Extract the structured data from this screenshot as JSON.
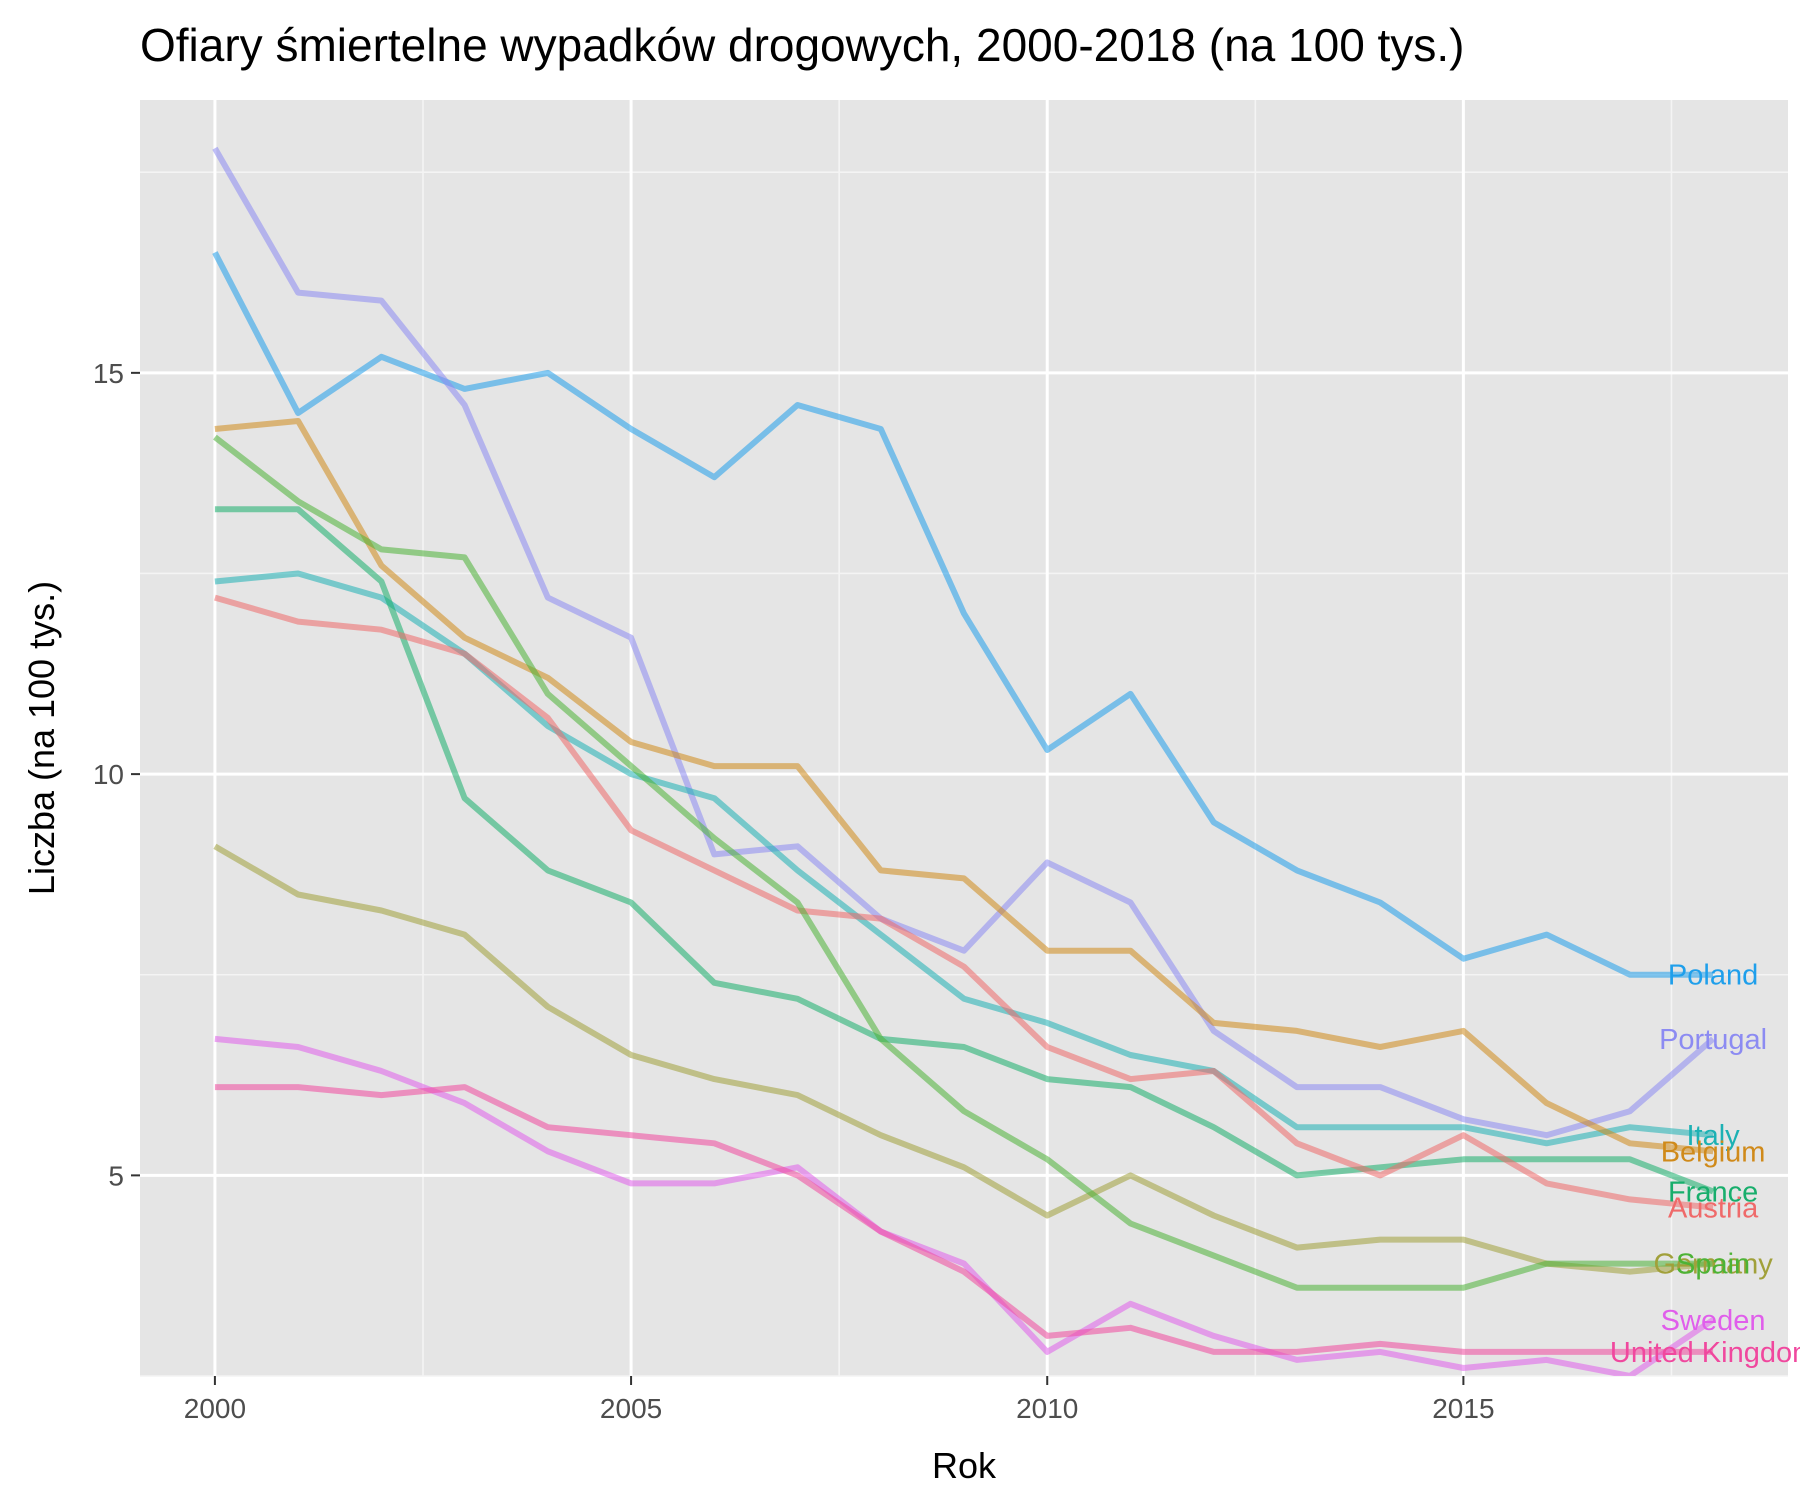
{
  "chart_data": {
    "type": "line",
    "title": "Ofiary śmiertelne wypadków drogowych, 2000-2018 (na 100 tys.)",
    "xlabel": "Rok",
    "ylabel": "Liczba (na 100 tys.)",
    "x": [
      2000,
      2001,
      2002,
      2003,
      2004,
      2005,
      2006,
      2007,
      2008,
      2009,
      2010,
      2011,
      2012,
      2013,
      2014,
      2015,
      2016,
      2017,
      2018
    ],
    "xlim": [
      1999.1,
      2018.9
    ],
    "ylim": [
      2.5,
      18.4
    ],
    "x_ticks": [
      "2000",
      "2005",
      "2010",
      "2015"
    ],
    "y_ticks": [
      "5",
      "10",
      "15"
    ],
    "grid": true,
    "legend": "direct labels at line ends",
    "series": [
      {
        "name": "Poland",
        "color": "#1F9FEB",
        "values": [
          16.5,
          14.5,
          15.2,
          14.8,
          15.0,
          14.3,
          13.7,
          14.6,
          14.3,
          12.0,
          10.3,
          11.0,
          9.4,
          8.8,
          8.4,
          7.7,
          8.0,
          7.5,
          7.5
        ]
      },
      {
        "name": "Portugal",
        "color": "#8C8BF2",
        "values": [
          17.8,
          16.0,
          15.9,
          14.6,
          12.2,
          11.7,
          9.0,
          9.1,
          8.2,
          7.8,
          8.9,
          8.4,
          6.8,
          6.1,
          6.1,
          5.7,
          5.5,
          5.8,
          6.7
        ]
      },
      {
        "name": "Italy",
        "color": "#1DB1B4",
        "values": [
          12.4,
          12.5,
          12.2,
          11.5,
          10.6,
          10.0,
          9.7,
          8.8,
          8.0,
          7.2,
          6.9,
          6.5,
          6.3,
          5.6,
          5.6,
          5.6,
          5.4,
          5.6,
          5.5
        ]
      },
      {
        "name": "Belgium",
        "color": "#D08A1A",
        "values": [
          14.3,
          14.4,
          12.6,
          11.7,
          11.2,
          10.4,
          10.1,
          10.1,
          8.8,
          8.7,
          7.8,
          7.8,
          6.9,
          6.8,
          6.6,
          6.8,
          5.9,
          5.4,
          5.3
        ]
      },
      {
        "name": "France",
        "color": "#18AE6C",
        "values": [
          13.3,
          13.3,
          12.4,
          9.7,
          8.8,
          8.4,
          7.4,
          7.2,
          6.7,
          6.6,
          6.2,
          6.1,
          5.6,
          5.0,
          5.1,
          5.2,
          5.2,
          5.2,
          4.8
        ]
      },
      {
        "name": "Austria",
        "color": "#EF6A6A",
        "values": [
          12.2,
          11.9,
          11.8,
          11.5,
          10.7,
          9.3,
          8.8,
          8.3,
          8.2,
          7.6,
          6.6,
          6.2,
          6.3,
          5.4,
          5.0,
          5.5,
          4.9,
          4.7,
          4.6
        ]
      },
      {
        "name": "Germany",
        "color": "#A1A03A",
        "values": [
          9.1,
          8.5,
          8.3,
          8.0,
          7.1,
          6.5,
          6.2,
          6.0,
          5.5,
          5.1,
          4.5,
          5.0,
          4.5,
          4.1,
          4.2,
          4.2,
          3.9,
          3.8,
          3.9
        ]
      },
      {
        "name": "Spain",
        "color": "#4DB336",
        "values": [
          14.2,
          13.4,
          12.8,
          12.7,
          11.0,
          10.1,
          9.2,
          8.4,
          6.7,
          5.8,
          5.2,
          4.4,
          4.0,
          3.6,
          3.6,
          3.6,
          3.9,
          3.9,
          3.9
        ]
      },
      {
        "name": "Sweden",
        "color": "#E05EEB",
        "values": [
          6.7,
          6.6,
          6.3,
          5.9,
          5.3,
          4.9,
          4.9,
          5.1,
          4.3,
          3.9,
          2.8,
          3.4,
          3.0,
          2.7,
          2.8,
          2.6,
          2.7,
          2.5,
          3.2
        ]
      },
      {
        "name": "United Kingdom",
        "color": "#F0489E",
        "values": [
          6.1,
          6.1,
          6.0,
          6.1,
          5.6,
          5.5,
          5.4,
          5.0,
          4.3,
          3.8,
          3.0,
          3.1,
          2.8,
          2.8,
          2.9,
          2.8,
          2.8,
          2.8,
          2.8
        ]
      }
    ]
  }
}
